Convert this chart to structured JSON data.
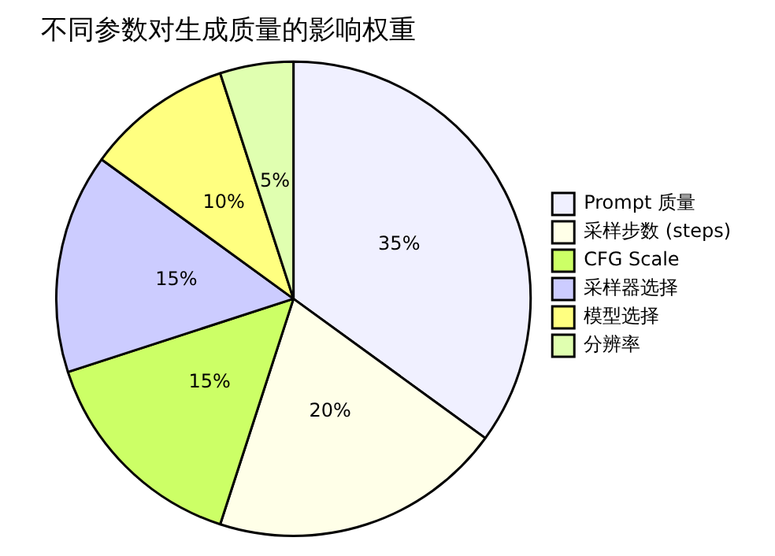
{
  "chart_data": {
    "type": "pie",
    "title": "不同参数对生成质量的影响权重",
    "categories": [
      "Prompt 质量",
      "采样步数 (steps)",
      "CFG Scale",
      "采样器选择",
      "模型选择",
      "分辨率"
    ],
    "values": [
      35,
      20,
      15,
      15,
      10,
      5
    ],
    "colors": [
      "#f0f0ff",
      "#ffffe8",
      "#ccff66",
      "#ccccff",
      "#ffff80",
      "#e0ffb0"
    ],
    "value_labels": [
      "35%",
      "20%",
      "15%",
      "15%",
      "10%",
      "5%"
    ],
    "legend": "right"
  }
}
